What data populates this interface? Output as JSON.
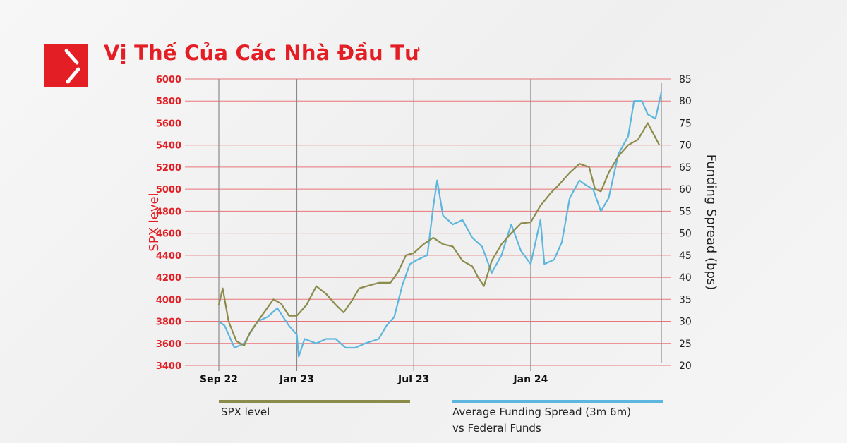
{
  "title": "Vị Thế Của Các Nhà Đầu Tư",
  "logo": {
    "icon": "brand-logo-icon",
    "color": "#e31e24"
  },
  "chart_data": {
    "type": "line",
    "title": "Vị Thế Của Các Nhà Đầu Tư",
    "xlabel": "",
    "ylabel": "SPX level",
    "y2label": "Funding Spread (bps)",
    "x_unit": "months after Sep 22",
    "x_ticks": [
      {
        "x": 0,
        "label": "Sep 22"
      },
      {
        "x": 4,
        "label": "Jan 23"
      },
      {
        "x": 10,
        "label": "Jul 23"
      },
      {
        "x": 16,
        "label": "Jan 24"
      }
    ],
    "xlim": [
      0,
      22.7
    ],
    "ylim": [
      3400,
      6000
    ],
    "y_ticks": [
      3400,
      3600,
      3800,
      4000,
      4200,
      4400,
      4600,
      4800,
      5000,
      5200,
      5400,
      5600,
      5800,
      6000
    ],
    "y2lim": [
      20,
      85
    ],
    "y2_ticks": [
      20,
      25,
      30,
      35,
      40,
      45,
      50,
      55,
      60,
      65,
      70,
      75,
      80,
      85
    ],
    "grid": "horizontal red lines, vertical lines at x ticks",
    "legend_placement": "bottom",
    "colors": {
      "spx": "#8b8b4b",
      "funding": "#5cb6dd",
      "grid": "#e8555a",
      "axis_text": "#e31e24"
    },
    "series": [
      {
        "name": "SPX level",
        "axis": "left",
        "x": [
          0,
          0.2,
          0.5,
          0.9,
          1.3,
          1.6,
          2.0,
          2.4,
          2.8,
          3.2,
          3.6,
          4.0,
          4.5,
          5.0,
          5.5,
          6.0,
          6.4,
          6.8,
          7.2,
          7.6,
          8.2,
          8.8,
          9.2,
          9.6,
          10.0,
          10.5,
          11.0,
          11.5,
          12.0,
          12.5,
          13.0,
          13.3,
          13.6,
          14.0,
          14.5,
          15.0,
          15.5,
          16.0,
          16.5,
          17.0,
          17.5,
          18.0,
          18.5,
          19.0,
          19.3,
          19.6,
          20.0,
          20.5,
          21.0,
          21.5,
          22.0,
          22.3,
          22.6
        ],
        "values": [
          3950,
          4100,
          3800,
          3620,
          3580,
          3700,
          3800,
          3900,
          4000,
          3960,
          3850,
          3850,
          3950,
          4120,
          4050,
          3950,
          3880,
          3980,
          4100,
          4120,
          4150,
          4150,
          4250,
          4400,
          4420,
          4500,
          4560,
          4500,
          4480,
          4350,
          4300,
          4200,
          4120,
          4350,
          4500,
          4600,
          4690,
          4700,
          4850,
          4960,
          5050,
          5150,
          5230,
          5200,
          5000,
          4980,
          5150,
          5300,
          5400,
          5450,
          5600,
          5500,
          5400
        ]
      },
      {
        "name": "Average Funding Spread (3m 6m) vs Federal Funds",
        "axis": "right",
        "x": [
          0,
          0.3,
          0.5,
          0.8,
          1.3,
          1.7,
          2.0,
          2.5,
          3.0,
          3.3,
          3.6,
          4.0,
          4.1,
          4.4,
          5.0,
          5.5,
          6.0,
          6.5,
          7.0,
          7.5,
          8.2,
          8.6,
          9.0,
          9.4,
          9.8,
          10.2,
          10.7,
          11.0,
          11.2,
          11.5,
          12.0,
          12.5,
          13.0,
          13.5,
          14.0,
          14.5,
          15.0,
          15.5,
          16.0,
          16.5,
          16.7,
          17.2,
          17.6,
          18.0,
          18.5,
          18.8,
          19.2,
          19.6,
          20.0,
          20.5,
          21.0,
          21.3,
          21.7,
          22.0,
          22.4,
          22.7
        ],
        "values": [
          30,
          29,
          27,
          24,
          25,
          28,
          30,
          31,
          33,
          31,
          29,
          27,
          22,
          26,
          25,
          26,
          26,
          24,
          24,
          25,
          26,
          29,
          31,
          38,
          43,
          44,
          45,
          56,
          62,
          54,
          52,
          53,
          49,
          47,
          41,
          45,
          52,
          46,
          43,
          53,
          43,
          44,
          48,
          58,
          62,
          61,
          60,
          55,
          58,
          68,
          72,
          80,
          80,
          77,
          76,
          82
        ]
      }
    ]
  },
  "legend": {
    "spx_label": "SPX level",
    "funding_label_line1": "Average Funding Spread (3m 6m)",
    "funding_label_line2": "vs Federal Funds"
  }
}
